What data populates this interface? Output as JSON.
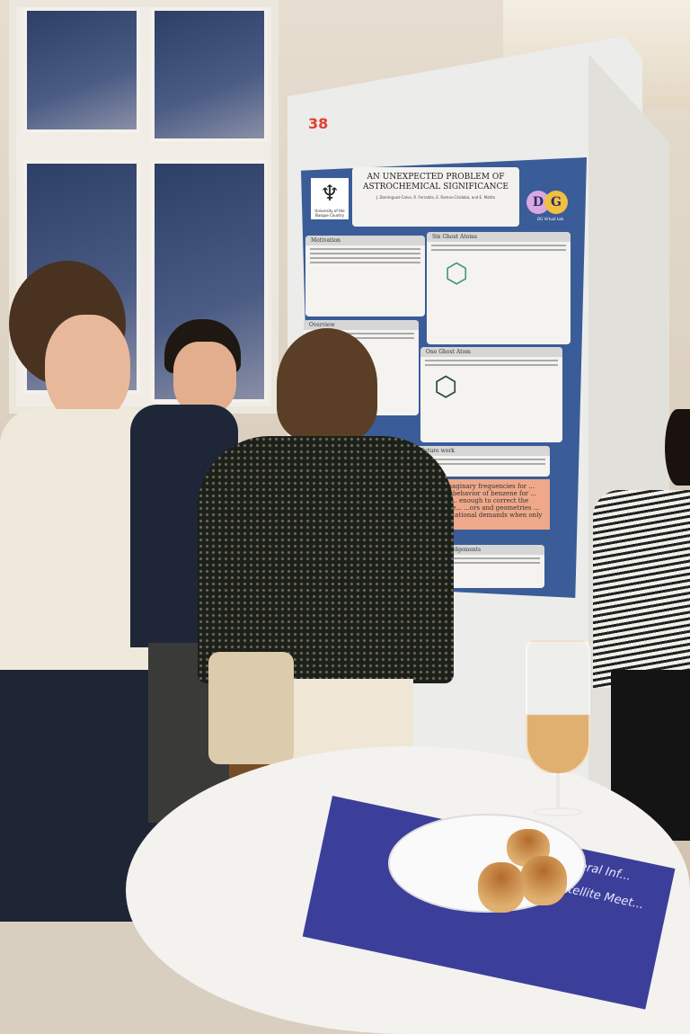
{
  "poster": {
    "board_number": "38",
    "title": "AN UNEXPECTED PROBLEM OF ASTROCHEMICAL SIGNIFICANCE",
    "authors": "J. Domínguez-Calvo, R. Ferradás, E. Ramos-Córdoba, and E. Matito",
    "university_logo_text": "University of the Basque Country",
    "lab_logo_text": "DG Virtual Lab",
    "sections": [
      "Motivation",
      "Six Ghost Atoms",
      "Overview",
      "One Ghost Atom",
      "Future work",
      "Acknowledgements"
    ],
    "highlight_text": "... yield imaginary frequencies for ... frequency behavior of benzene for ... and CISD ... enough to correct the spurious be... ...ors and geometries ... the computational demands when only ..."
  },
  "pamphlet": {
    "title": "ICQC2026 General Inf...",
    "subtitle": "Confirmed Satellite Meet..."
  },
  "colors": {
    "poster_bg": "#3a5c98",
    "highlight": "#efa98a",
    "board_number": "#e04030"
  }
}
